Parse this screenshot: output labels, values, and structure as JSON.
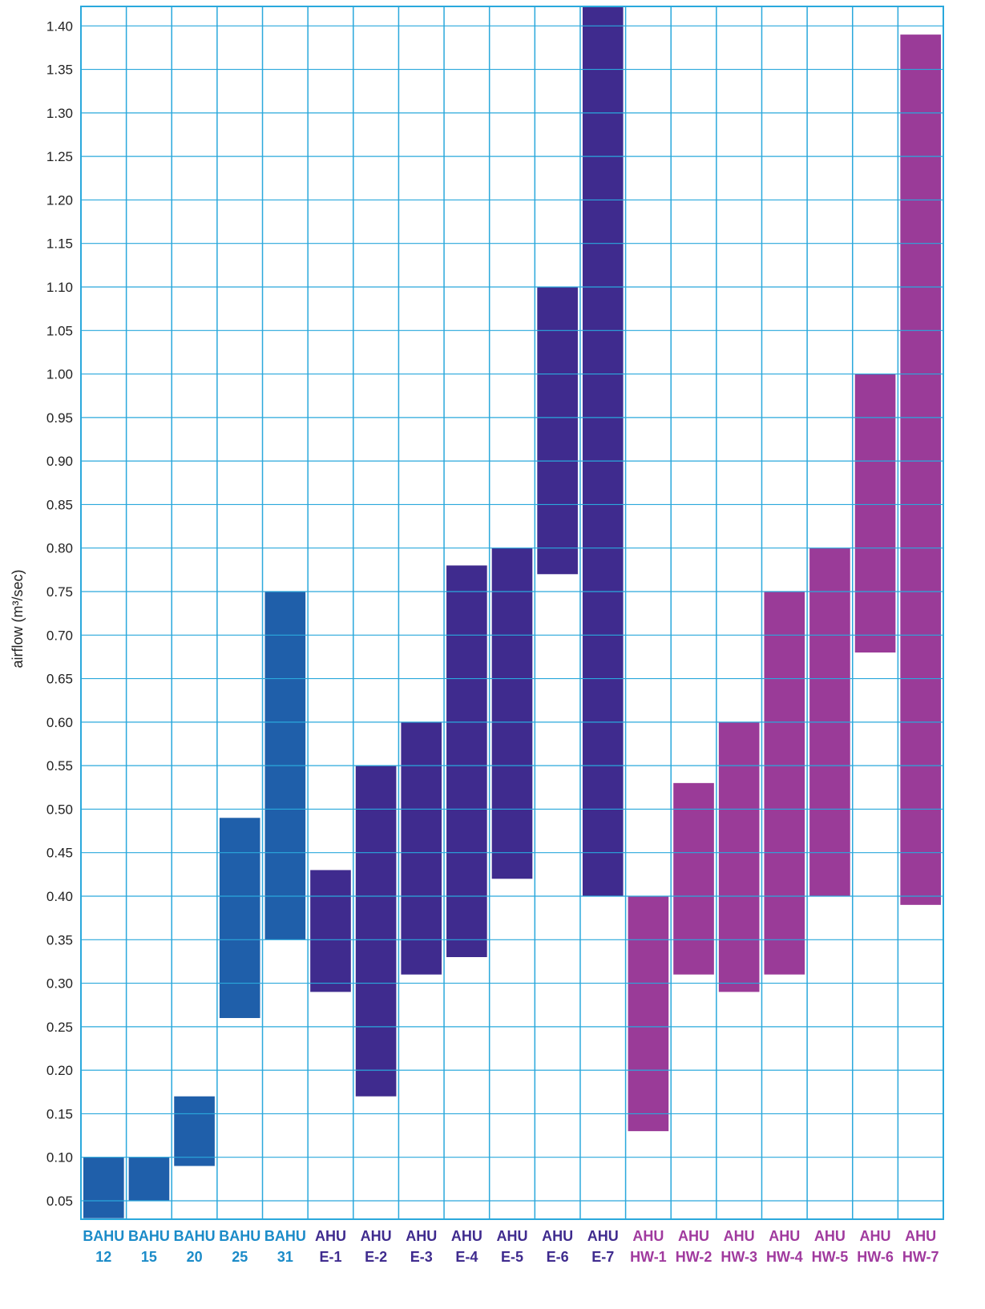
{
  "chart_data": {
    "type": "bar",
    "subtype": "floating-range",
    "ylabel": "airflow (m³/sec)",
    "xlabel": "",
    "ylim": [
      0.03,
      1.43
    ],
    "yticks": [
      "0.05",
      "0.10",
      "0.15",
      "0.20",
      "0.25",
      "0.30",
      "0.35",
      "0.40",
      "0.45",
      "0.50",
      "0.55",
      "0.60",
      "0.65",
      "0.70",
      "0.75",
      "0.80",
      "0.85",
      "0.90",
      "0.95",
      "1.00",
      "1.05",
      "1.10",
      "1.15",
      "1.20",
      "1.25",
      "1.30",
      "1.35",
      "1.40"
    ],
    "grid": true,
    "categories": [
      {
        "line1": "BAHU",
        "line2": "12",
        "group": "BAHU",
        "min": 0.03,
        "max": 0.1
      },
      {
        "line1": "BAHU",
        "line2": "15",
        "group": "BAHU",
        "min": 0.05,
        "max": 0.1
      },
      {
        "line1": "BAHU",
        "line2": "20",
        "group": "BAHU",
        "min": 0.09,
        "max": 0.17
      },
      {
        "line1": "BAHU",
        "line2": "25",
        "group": "BAHU",
        "min": 0.26,
        "max": 0.49
      },
      {
        "line1": "BAHU",
        "line2": "31",
        "group": "BAHU",
        "min": 0.35,
        "max": 0.75
      },
      {
        "line1": "AHU",
        "line2": "E-1",
        "group": "E",
        "min": 0.29,
        "max": 0.43
      },
      {
        "line1": "AHU",
        "line2": "E-2",
        "group": "E",
        "min": 0.17,
        "max": 0.55
      },
      {
        "line1": "AHU",
        "line2": "E-3",
        "group": "E",
        "min": 0.31,
        "max": 0.6
      },
      {
        "line1": "AHU",
        "line2": "E-4",
        "group": "E",
        "min": 0.33,
        "max": 0.78
      },
      {
        "line1": "AHU",
        "line2": "E-5",
        "group": "E",
        "min": 0.42,
        "max": 0.8
      },
      {
        "line1": "AHU",
        "line2": "E-6",
        "group": "E",
        "min": 0.77,
        "max": 1.1
      },
      {
        "line1": "AHU",
        "line2": "E-7",
        "group": "E",
        "min": 0.4,
        "max": 1.43
      },
      {
        "line1": "AHU",
        "line2": "HW-1",
        "group": "HW",
        "min": 0.13,
        "max": 0.4
      },
      {
        "line1": "AHU",
        "line2": "HW-2",
        "group": "HW",
        "min": 0.31,
        "max": 0.53
      },
      {
        "line1": "AHU",
        "line2": "HW-3",
        "group": "HW",
        "min": 0.29,
        "max": 0.6
      },
      {
        "line1": "AHU",
        "line2": "HW-4",
        "group": "HW",
        "min": 0.31,
        "max": 0.75
      },
      {
        "line1": "AHU",
        "line2": "HW-5",
        "group": "HW",
        "min": 0.4,
        "max": 0.8
      },
      {
        "line1": "AHU",
        "line2": "HW-6",
        "group": "HW",
        "min": 0.68,
        "max": 1.0
      },
      {
        "line1": "AHU",
        "line2": "HW-7",
        "group": "HW",
        "min": 0.39,
        "max": 1.39
      }
    ],
    "colors": {
      "BAHU": {
        "bar": "#1f5faa",
        "label": "#1b8bc8"
      },
      "E": {
        "bar": "#3f2b8e",
        "label": "#3f2b8e"
      },
      "HW": {
        "bar": "#9a3b98",
        "label": "#a03a9e"
      },
      "grid": "#2aa8dc"
    }
  }
}
